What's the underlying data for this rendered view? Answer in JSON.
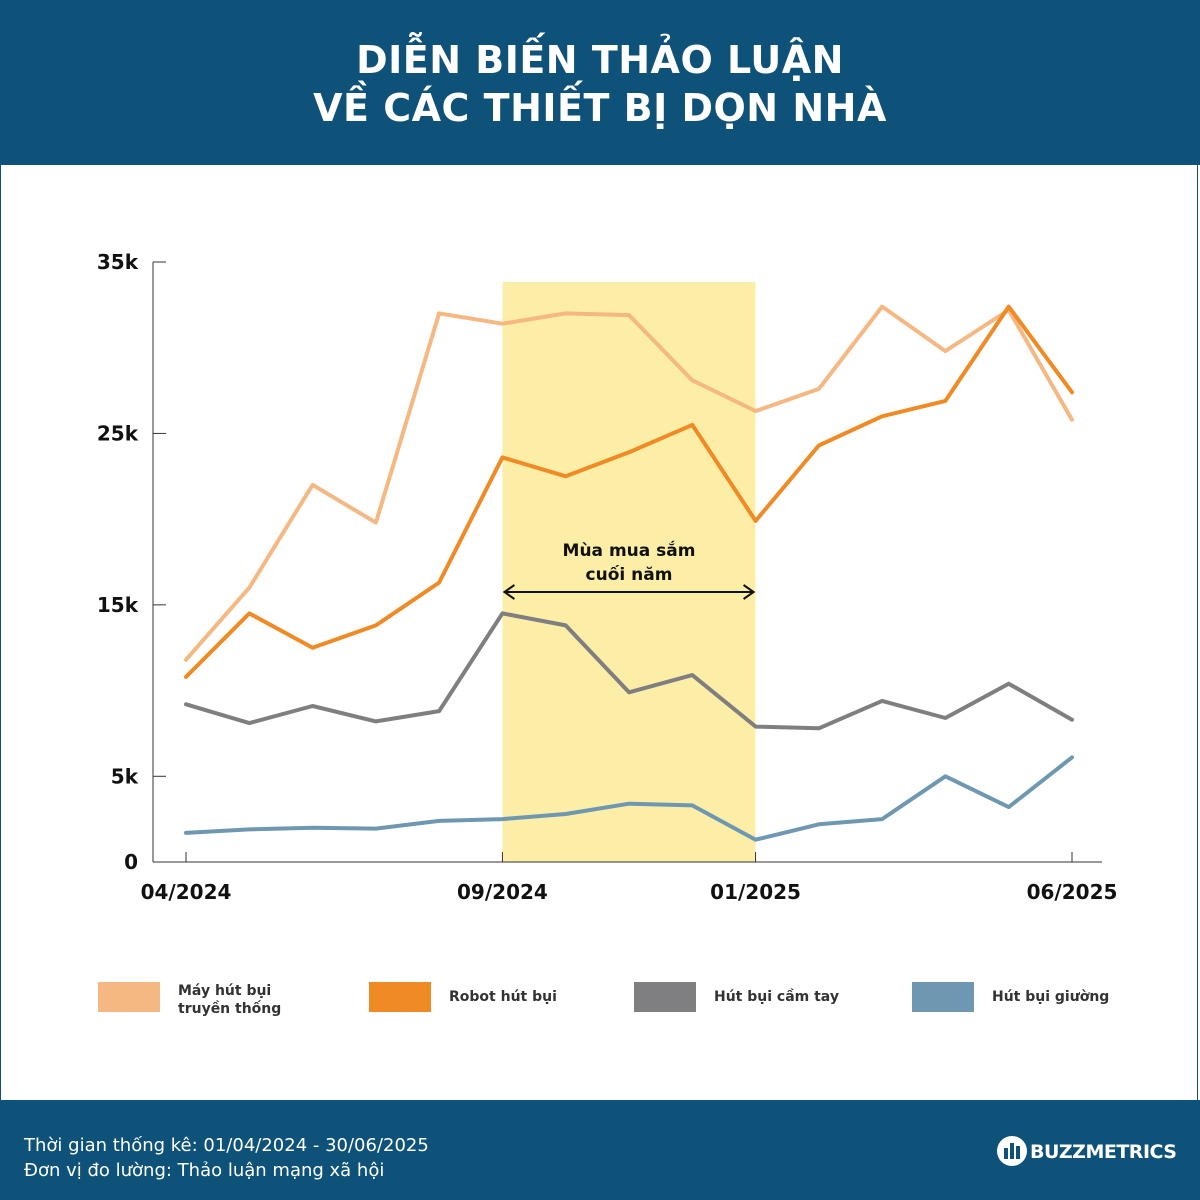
{
  "header": {
    "title_line1": "DIỄN BIẾN THẢO LUẬN",
    "title_line2": "VỀ CÁC THIẾT BỊ DỌN NHÀ"
  },
  "colors": {
    "header_bg": "#0f5279",
    "highlight": "#fdeea7",
    "axis": "#333333"
  },
  "chart_data": {
    "type": "line",
    "title": "DIỄN BIẾN THẢO LUẬN VỀ CÁC THIẾT BỊ DỌN NHÀ",
    "xlabel": "",
    "ylabel": "",
    "x_tick_labels": [
      "04/2024",
      "09/2024",
      "01/2025",
      "06/2025"
    ],
    "y_ticks": [
      {
        "value": 0,
        "label": "0"
      },
      {
        "value": 5000,
        "label": "5k"
      },
      {
        "value": 15000,
        "label": "15k"
      },
      {
        "value": 25000,
        "label": "25k"
      },
      {
        "value": 35000,
        "label": "35k"
      }
    ],
    "ylim": [
      0,
      35000
    ],
    "x_index_range": [
      0,
      14
    ],
    "series": [
      {
        "name": "Máy hút bụi truyền thống",
        "color": "#f5b882",
        "values": [
          11800,
          16000,
          22000,
          19800,
          32000,
          31400,
          32000,
          31900,
          28100,
          26300,
          27600,
          32400,
          29800,
          32200,
          25800
        ]
      },
      {
        "name": "Robot hút bụi",
        "color": "#f08a24",
        "values": [
          10800,
          14500,
          12500,
          13800,
          16300,
          23600,
          22500,
          23900,
          25500,
          19900,
          24300,
          26000,
          26900,
          32400,
          27400
        ]
      },
      {
        "name": "Hút bụi cầm tay",
        "color": "#7f7e80",
        "values": [
          9200,
          8100,
          9100,
          8200,
          8800,
          14500,
          13800,
          9900,
          10900,
          7900,
          7800,
          9400,
          8400,
          10400,
          8300
        ]
      },
      {
        "name": "Hút bụi giường",
        "color": "#6e98b2",
        "values": [
          1700,
          1900,
          2000,
          1950,
          2400,
          2500,
          2800,
          3400,
          3300,
          1300,
          2200,
          2500,
          5000,
          3200,
          6100
        ]
      }
    ],
    "highlight_range": {
      "from_index": 5,
      "to_index": 9,
      "label_line1": "Mùa mua sắm",
      "label_line2": "cuối năm"
    },
    "legend": [
      {
        "line1": "Máy hút bụi",
        "line2": "truyền thống",
        "color": "#f5b882"
      },
      {
        "line1": "Robot hút bụi",
        "line2": "",
        "color": "#f08a24"
      },
      {
        "line1": "Hút bụi cầm tay",
        "line2": "",
        "color": "#7f7e80"
      },
      {
        "line1": "Hút bụi giường",
        "line2": "",
        "color": "#6e98b2"
      }
    ]
  },
  "footer": {
    "period": "Thời gian thống kê: 01/04/2024 - 30/06/2025",
    "unit": "Đơn vị đo lường: Thảo luận mạng xã hội",
    "brand": "BUZZMETRICS"
  }
}
